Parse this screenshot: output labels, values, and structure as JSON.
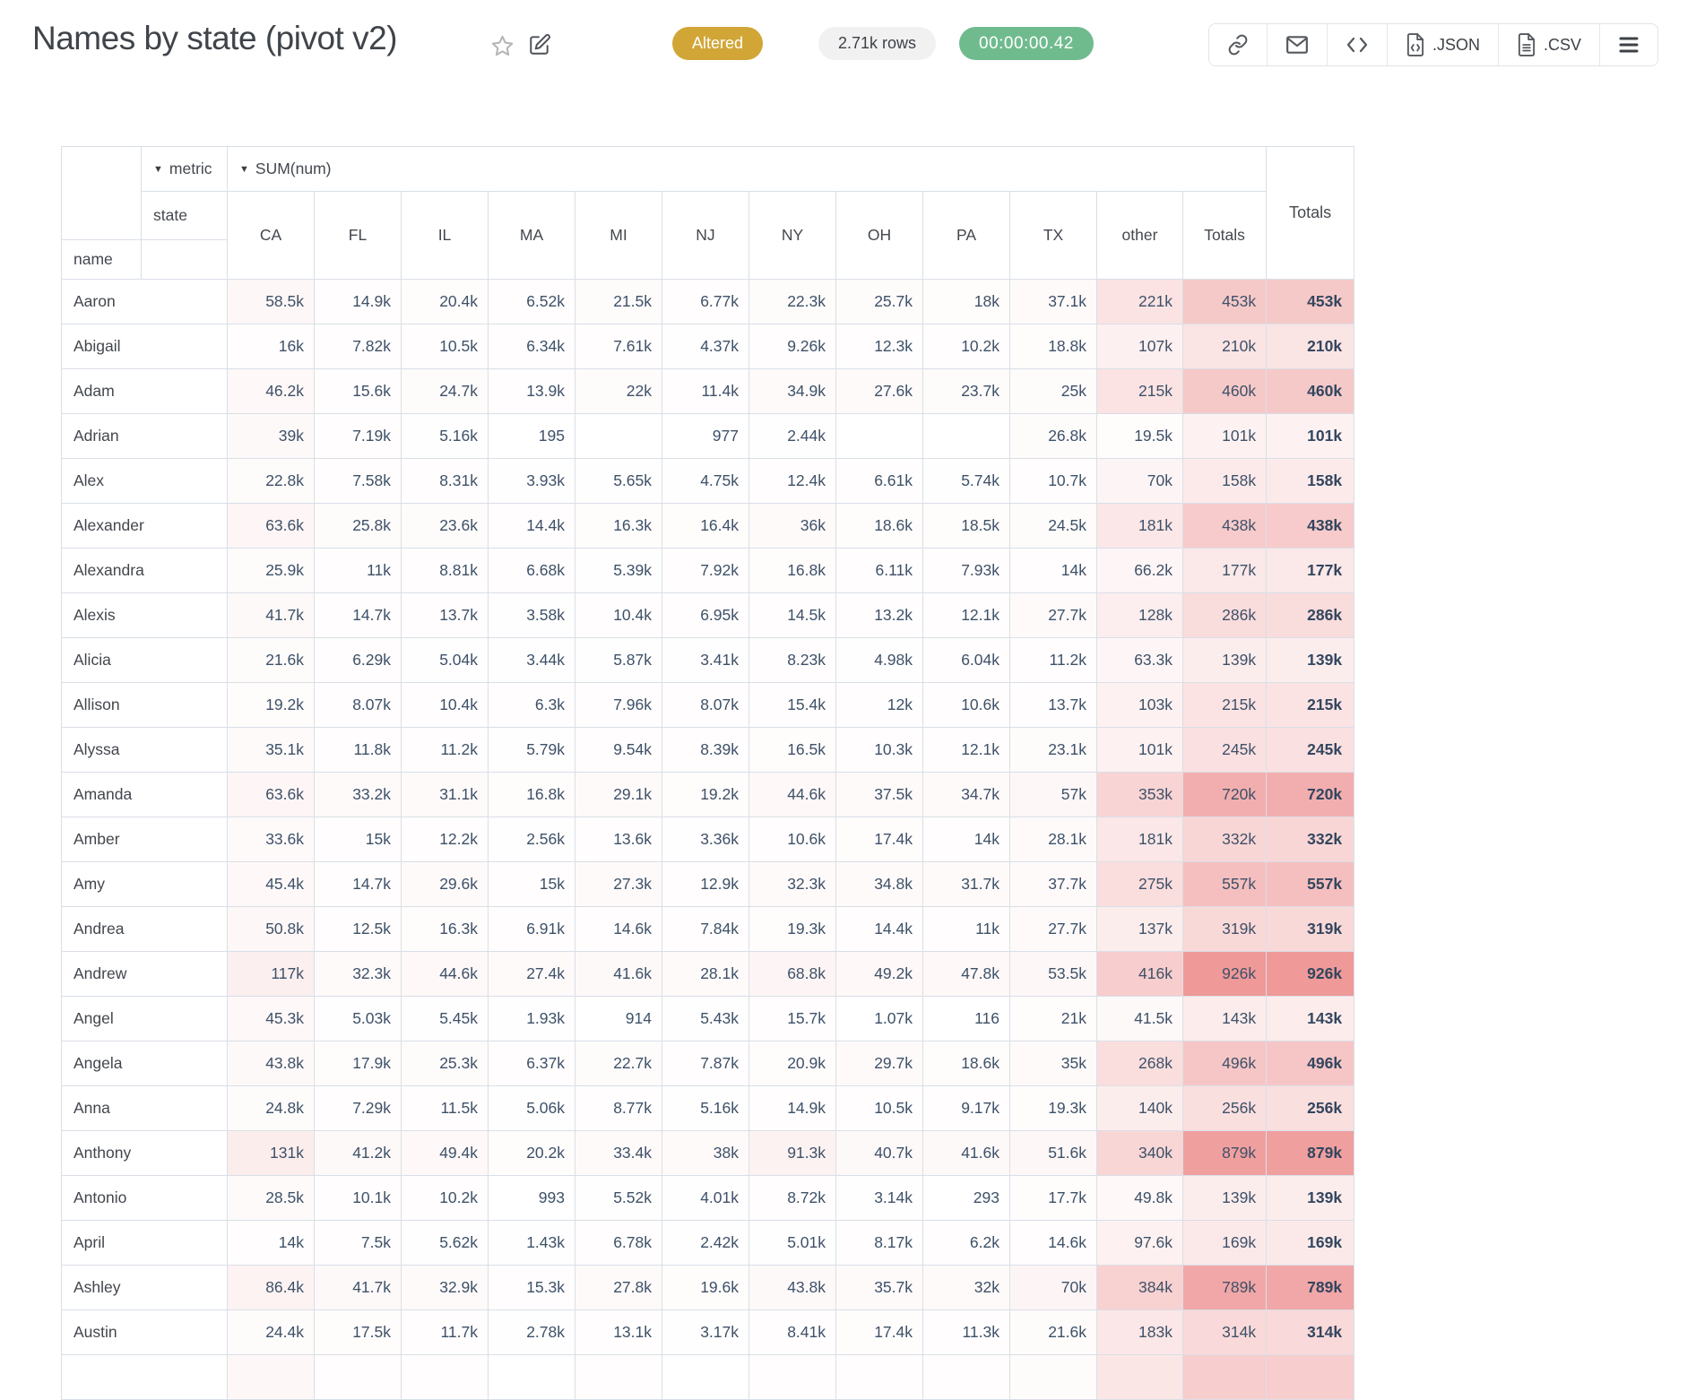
{
  "header": {
    "title": "Names by state (pivot v2)",
    "status_badge": "Altered",
    "rows_badge": "2.71k rows",
    "timer_badge": "00:00:00.42",
    "toolbar": {
      "link_icon": "link-icon",
      "email_icon": "envelope-icon",
      "embed_icon": "code-icon",
      "json_label": ".JSON",
      "csv_label": ".CSV",
      "menu_icon": "hamburger-icon"
    },
    "colors": {
      "altered_bg": "#d1a637",
      "timer_bg": "#70bb8e",
      "rows_pill_bg": "#f1f1f2"
    }
  },
  "pivot": {
    "dropdown_arrow": "▼",
    "metric_dropdown": "metric",
    "sum_dropdown": "SUM(num)",
    "state_label": "state",
    "name_label": "name",
    "totals_label": "Totals",
    "columns": [
      "CA",
      "FL",
      "IL",
      "MA",
      "MI",
      "NJ",
      "NY",
      "OH",
      "PA",
      "TX",
      "other",
      "Totals"
    ],
    "heat": {
      "base_rgb": "224,60,60",
      "max_value": 926000,
      "max_alpha": 0.52,
      "exponent": 0.9
    },
    "rows": [
      {
        "name": "Aaron",
        "cells": [
          "58.5k",
          "14.9k",
          "20.4k",
          "6.52k",
          "21.5k",
          "6.77k",
          "22.3k",
          "25.7k",
          "18k",
          "37.1k",
          "221k",
          "453k"
        ],
        "total": "453k"
      },
      {
        "name": "Abigail",
        "cells": [
          "16k",
          "7.82k",
          "10.5k",
          "6.34k",
          "7.61k",
          "4.37k",
          "9.26k",
          "12.3k",
          "10.2k",
          "18.8k",
          "107k",
          "210k"
        ],
        "total": "210k"
      },
      {
        "name": "Adam",
        "cells": [
          "46.2k",
          "15.6k",
          "24.7k",
          "13.9k",
          "22k",
          "11.4k",
          "34.9k",
          "27.6k",
          "23.7k",
          "25k",
          "215k",
          "460k"
        ],
        "total": "460k"
      },
      {
        "name": "Adrian",
        "cells": [
          "39k",
          "7.19k",
          "5.16k",
          "195",
          "",
          "977",
          "2.44k",
          "",
          "",
          "26.8k",
          "19.5k",
          "101k"
        ],
        "total": "101k"
      },
      {
        "name": "Alex",
        "cells": [
          "22.8k",
          "7.58k",
          "8.31k",
          "3.93k",
          "5.65k",
          "4.75k",
          "12.4k",
          "6.61k",
          "5.74k",
          "10.7k",
          "70k",
          "158k"
        ],
        "total": "158k"
      },
      {
        "name": "Alexander",
        "cells": [
          "63.6k",
          "25.8k",
          "23.6k",
          "14.4k",
          "16.3k",
          "16.4k",
          "36k",
          "18.6k",
          "18.5k",
          "24.5k",
          "181k",
          "438k"
        ],
        "total": "438k"
      },
      {
        "name": "Alexandra",
        "cells": [
          "25.9k",
          "11k",
          "8.81k",
          "6.68k",
          "5.39k",
          "7.92k",
          "16.8k",
          "6.11k",
          "7.93k",
          "14k",
          "66.2k",
          "177k"
        ],
        "total": "177k"
      },
      {
        "name": "Alexis",
        "cells": [
          "41.7k",
          "14.7k",
          "13.7k",
          "3.58k",
          "10.4k",
          "6.95k",
          "14.5k",
          "13.2k",
          "12.1k",
          "27.7k",
          "128k",
          "286k"
        ],
        "total": "286k"
      },
      {
        "name": "Alicia",
        "cells": [
          "21.6k",
          "6.29k",
          "5.04k",
          "3.44k",
          "5.87k",
          "3.41k",
          "8.23k",
          "4.98k",
          "6.04k",
          "11.2k",
          "63.3k",
          "139k"
        ],
        "total": "139k"
      },
      {
        "name": "Allison",
        "cells": [
          "19.2k",
          "8.07k",
          "10.4k",
          "6.3k",
          "7.96k",
          "8.07k",
          "15.4k",
          "12k",
          "10.6k",
          "13.7k",
          "103k",
          "215k"
        ],
        "total": "215k"
      },
      {
        "name": "Alyssa",
        "cells": [
          "35.1k",
          "11.8k",
          "11.2k",
          "5.79k",
          "9.54k",
          "8.39k",
          "16.5k",
          "10.3k",
          "12.1k",
          "23.1k",
          "101k",
          "245k"
        ],
        "total": "245k"
      },
      {
        "name": "Amanda",
        "cells": [
          "63.6k",
          "33.2k",
          "31.1k",
          "16.8k",
          "29.1k",
          "19.2k",
          "44.6k",
          "37.5k",
          "34.7k",
          "57k",
          "353k",
          "720k"
        ],
        "total": "720k"
      },
      {
        "name": "Amber",
        "cells": [
          "33.6k",
          "15k",
          "12.2k",
          "2.56k",
          "13.6k",
          "3.36k",
          "10.6k",
          "17.4k",
          "14k",
          "28.1k",
          "181k",
          "332k"
        ],
        "total": "332k"
      },
      {
        "name": "Amy",
        "cells": [
          "45.4k",
          "14.7k",
          "29.6k",
          "15k",
          "27.3k",
          "12.9k",
          "32.3k",
          "34.8k",
          "31.7k",
          "37.7k",
          "275k",
          "557k"
        ],
        "total": "557k"
      },
      {
        "name": "Andrea",
        "cells": [
          "50.8k",
          "12.5k",
          "16.3k",
          "6.91k",
          "14.6k",
          "7.84k",
          "19.3k",
          "14.4k",
          "11k",
          "27.7k",
          "137k",
          "319k"
        ],
        "total": "319k"
      },
      {
        "name": "Andrew",
        "cells": [
          "117k",
          "32.3k",
          "44.6k",
          "27.4k",
          "41.6k",
          "28.1k",
          "68.8k",
          "49.2k",
          "47.8k",
          "53.5k",
          "416k",
          "926k"
        ],
        "total": "926k"
      },
      {
        "name": "Angel",
        "cells": [
          "45.3k",
          "5.03k",
          "5.45k",
          "1.93k",
          "914",
          "5.43k",
          "15.7k",
          "1.07k",
          "116",
          "21k",
          "41.5k",
          "143k"
        ],
        "total": "143k"
      },
      {
        "name": "Angela",
        "cells": [
          "43.8k",
          "17.9k",
          "25.3k",
          "6.37k",
          "22.7k",
          "7.87k",
          "20.9k",
          "29.7k",
          "18.6k",
          "35k",
          "268k",
          "496k"
        ],
        "total": "496k"
      },
      {
        "name": "Anna",
        "cells": [
          "24.8k",
          "7.29k",
          "11.5k",
          "5.06k",
          "8.77k",
          "5.16k",
          "14.9k",
          "10.5k",
          "9.17k",
          "19.3k",
          "140k",
          "256k"
        ],
        "total": "256k"
      },
      {
        "name": "Anthony",
        "cells": [
          "131k",
          "41.2k",
          "49.4k",
          "20.2k",
          "33.4k",
          "38k",
          "91.3k",
          "40.7k",
          "41.6k",
          "51.6k",
          "340k",
          "879k"
        ],
        "total": "879k"
      },
      {
        "name": "Antonio",
        "cells": [
          "28.5k",
          "10.1k",
          "10.2k",
          "993",
          "5.52k",
          "4.01k",
          "8.72k",
          "3.14k",
          "293",
          "17.7k",
          "49.8k",
          "139k"
        ],
        "total": "139k"
      },
      {
        "name": "April",
        "cells": [
          "14k",
          "7.5k",
          "5.62k",
          "1.43k",
          "6.78k",
          "2.42k",
          "5.01k",
          "8.17k",
          "6.2k",
          "14.6k",
          "97.6k",
          "169k"
        ],
        "total": "169k"
      },
      {
        "name": "Ashley",
        "cells": [
          "86.4k",
          "41.7k",
          "32.9k",
          "15.3k",
          "27.8k",
          "19.6k",
          "43.8k",
          "35.7k",
          "32k",
          "70k",
          "384k",
          "789k"
        ],
        "total": "789k"
      },
      {
        "name": "Austin",
        "cells": [
          "24.4k",
          "17.5k",
          "11.7k",
          "2.78k",
          "13.1k",
          "3.17k",
          "8.41k",
          "17.4k",
          "11.3k",
          "21.6k",
          "183k",
          "314k"
        ],
        "total": "314k"
      }
    ]
  }
}
